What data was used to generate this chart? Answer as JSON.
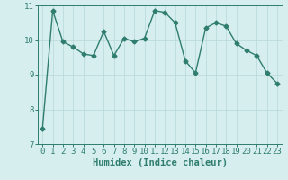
{
  "x": [
    0,
    1,
    2,
    3,
    4,
    5,
    6,
    7,
    8,
    9,
    10,
    11,
    12,
    13,
    14,
    15,
    16,
    17,
    18,
    19,
    20,
    21,
    22,
    23
  ],
  "y": [
    7.45,
    10.85,
    9.95,
    9.8,
    9.6,
    9.55,
    10.25,
    9.55,
    10.05,
    9.95,
    10.05,
    10.85,
    10.8,
    10.5,
    9.4,
    9.05,
    10.35,
    10.5,
    10.4,
    9.9,
    9.7,
    9.55,
    9.05,
    8.75
  ],
  "line_color": "#2e7d6e",
  "marker": "D",
  "marker_size": 2.5,
  "linewidth": 1.0,
  "background_color": "#d6eeee",
  "grid_color": "#b8d8d8",
  "xlabel": "Humidex (Indice chaleur)",
  "ylim": [
    7,
    11
  ],
  "xlim": [
    -0.5,
    23.5
  ],
  "yticks": [
    7,
    8,
    9,
    10,
    11
  ],
  "xticks": [
    0,
    1,
    2,
    3,
    4,
    5,
    6,
    7,
    8,
    9,
    10,
    11,
    12,
    13,
    14,
    15,
    16,
    17,
    18,
    19,
    20,
    21,
    22,
    23
  ],
  "tick_color": "#2e7d6e",
  "axis_color": "#2e7d6e",
  "xlabel_fontsize": 7.5,
  "tick_fontsize": 6.5
}
